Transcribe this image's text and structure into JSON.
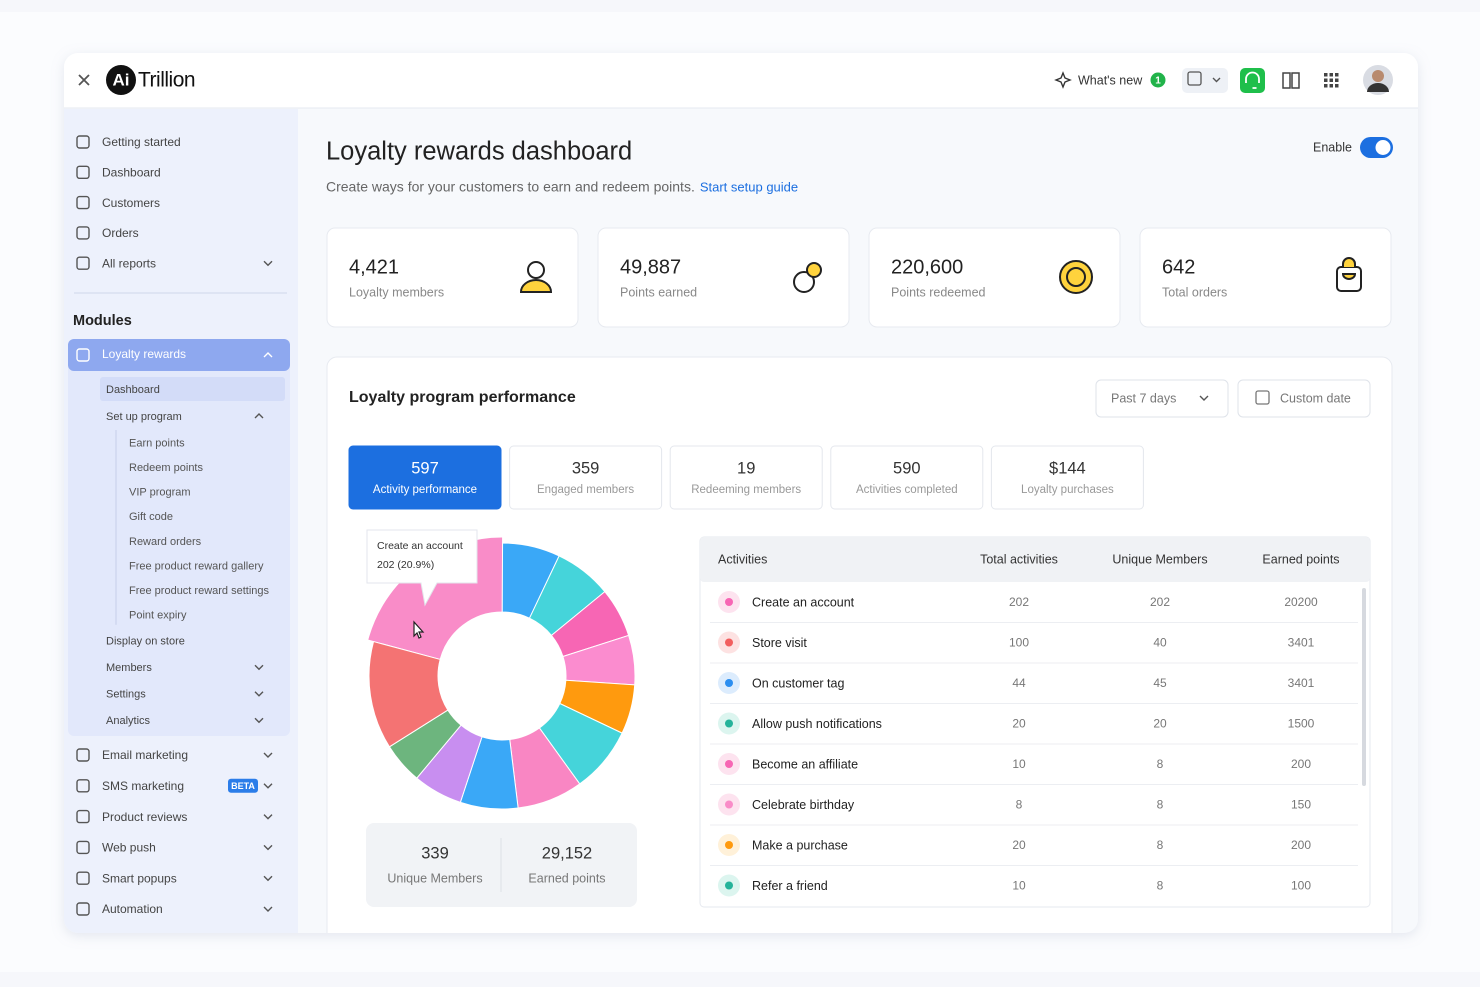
{
  "header": {
    "logo": "Ai",
    "brand": "Trillion",
    "whats_new": "What's new",
    "badge": "1"
  },
  "sidebar": {
    "nav": [
      {
        "label": "Getting started"
      },
      {
        "label": "Dashboard"
      },
      {
        "label": "Customers"
      },
      {
        "label": "Orders"
      },
      {
        "label": "All reports",
        "expandable": true
      }
    ],
    "modules_title": "Modules",
    "module": "Loyalty rewards",
    "submenu": [
      {
        "label": "Dashboard",
        "active": true
      },
      {
        "label": "Set up program",
        "children": [
          "Earn points",
          "Redeem points",
          "VIP program",
          "Gift code",
          "Reward orders",
          "Free product reward gallery",
          "Free product reward settings",
          "Point expiry"
        ]
      },
      {
        "label": "Display on store"
      },
      {
        "label": "Members",
        "expandable": true
      },
      {
        "label": "Settings",
        "expandable": true
      },
      {
        "label": "Analytics",
        "expandable": true
      }
    ],
    "modules": [
      {
        "label": "Email marketing"
      },
      {
        "label": "SMS marketing",
        "badge": "BETA"
      },
      {
        "label": "Product reviews"
      },
      {
        "label": "Web push"
      },
      {
        "label": "Smart popups"
      },
      {
        "label": "Automation"
      }
    ]
  },
  "page": {
    "title": "Loyalty rewards dashboard",
    "subtitle": "Create ways for your customers to earn and redeem points.",
    "link": "Start setup guide",
    "enable": "Enable",
    "enabled": true
  },
  "stats": [
    {
      "value": "4,421",
      "label": "Loyalty members"
    },
    {
      "value": "49,887",
      "label": "Points earned"
    },
    {
      "value": "220,600",
      "label": "Points redeemed"
    },
    {
      "value": "642",
      "label": "Total orders"
    }
  ],
  "performance": {
    "title": "Loyalty program performance",
    "range": "Past 7 days",
    "custom": "Custom date",
    "tabs": [
      {
        "value": "597",
        "label": "Activity performance",
        "active": true
      },
      {
        "value": "359",
        "label": "Engaged members"
      },
      {
        "value": "19",
        "label": "Redeeming members"
      },
      {
        "value": "590",
        "label": "Activities completed"
      },
      {
        "value": "$144",
        "label": "Loyalty purchases"
      }
    ],
    "summary": [
      {
        "value": "339",
        "label": "Unique Members"
      },
      {
        "value": "29,152",
        "label": "Earned points"
      }
    ]
  },
  "chart_data": {
    "type": "donut",
    "values": [
      20.9,
      7,
      7,
      6,
      6,
      6,
      8,
      8,
      7,
      6,
      5,
      13.1
    ],
    "colors": [
      "#f98cc8",
      "#3aa8f7",
      "#45d4da",
      "#f766b4",
      "#fb8ccf",
      "#ff9a0e",
      "#45d4da",
      "#f986c3",
      "#3aa8f7",
      "#c88ef0",
      "#6db57e",
      "#f47373"
    ],
    "tooltip": {
      "title": "Create an account",
      "label": "202 (20.9%)"
    }
  },
  "table": {
    "header": [
      "Activities",
      "Total activities",
      "Unique Members",
      "Earned points"
    ],
    "rows": [
      [
        "Create an account",
        202,
        202,
        20200
      ],
      [
        "Store visit",
        100,
        40,
        3401
      ],
      [
        "On customer tag",
        44,
        45,
        3401
      ],
      [
        "Allow push notifications",
        20,
        20,
        1500
      ],
      [
        "Become an affiliate",
        10,
        8,
        200
      ],
      [
        "Celebrate birthday",
        8,
        8,
        150
      ],
      [
        "Make a purchase",
        20,
        8,
        200
      ],
      [
        "Refer a friend",
        10,
        8,
        100
      ]
    ]
  }
}
